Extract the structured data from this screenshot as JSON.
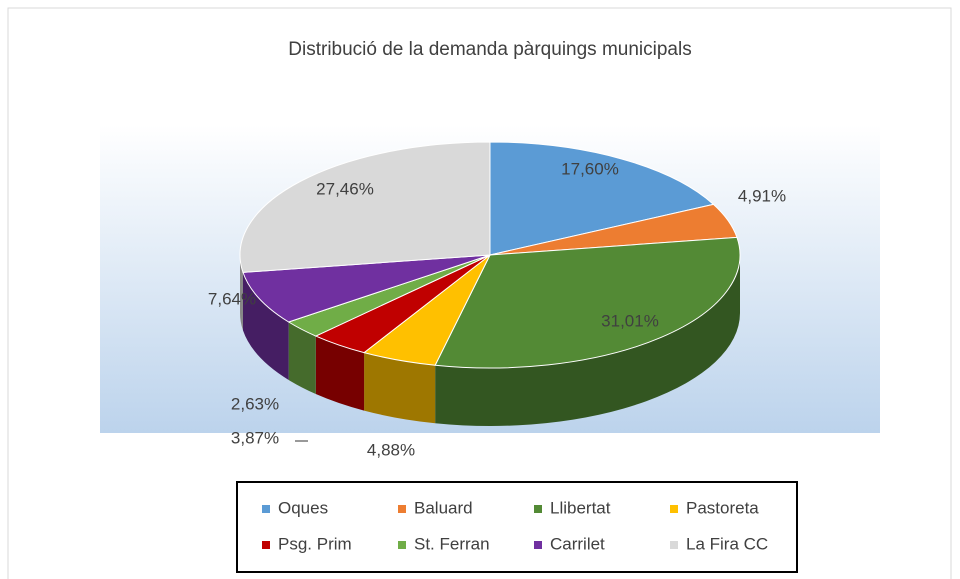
{
  "chart_data": {
    "type": "pie",
    "title": "Distribució  de la demanda pàrquings  municipals",
    "categories": [
      "Oques",
      "Baluard",
      "Llibertat",
      "Pastoreta",
      "Psg. Prim",
      "St. Ferran",
      "Carrilet",
      "La Fira CC"
    ],
    "values": [
      17.6,
      4.91,
      31.01,
      4.88,
      3.87,
      2.63,
      7.64,
      27.46
    ],
    "value_labels": [
      "17,60%",
      "4,91%",
      "31,01%",
      "4,88%",
      "3,87%",
      "2,63%",
      "7,64%",
      "27,46%"
    ],
    "colors": [
      "#5b9bd5",
      "#ed7d31",
      "#538a35",
      "#ffc000",
      "#c00000",
      "#70ad47",
      "#7030a0",
      "#d9d9d9"
    ],
    "legend": "bottom"
  }
}
